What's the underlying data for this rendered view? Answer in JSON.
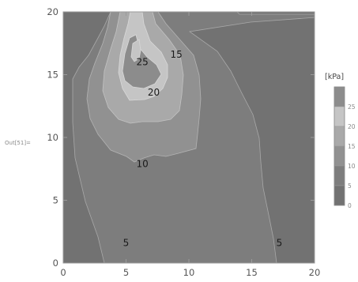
{
  "output_label": "Out[51]=",
  "chart_data": {
    "type": "contour",
    "x_ticks": [
      "0",
      "5",
      "10",
      "15",
      "20"
    ],
    "y_ticks": [
      "0",
      "5",
      "10",
      "15",
      "20"
    ],
    "xlim": [
      0,
      20
    ],
    "ylim": [
      0,
      20
    ],
    "contour_labels": [
      {
        "text": "25",
        "x": 6.3,
        "y": 16.0
      },
      {
        "text": "15",
        "x": 9.0,
        "y": 16.6
      },
      {
        "text": "20",
        "x": 7.2,
        "y": 13.6
      },
      {
        "text": "10",
        "x": 6.3,
        "y": 7.9
      },
      {
        "text": "5",
        "x": 5.0,
        "y": 1.6
      },
      {
        "text": "5",
        "x": 17.2,
        "y": 1.6
      }
    ],
    "levels": [
      {
        "label": "0",
        "color": "#727272"
      },
      {
        "label": "5",
        "color": "#7d7d7d"
      },
      {
        "label": "10",
        "color": "#919191"
      },
      {
        "label": "15",
        "color": "#a9a9a9"
      },
      {
        "label": "20",
        "color": "#c5c5c5"
      },
      {
        "label": "25",
        "color": "#8c8c8c"
      }
    ],
    "legend": {
      "title": "[kPa]",
      "ticks": [
        "25",
        "20",
        "15",
        "10",
        "5",
        "0"
      ],
      "placement": "right"
    }
  }
}
